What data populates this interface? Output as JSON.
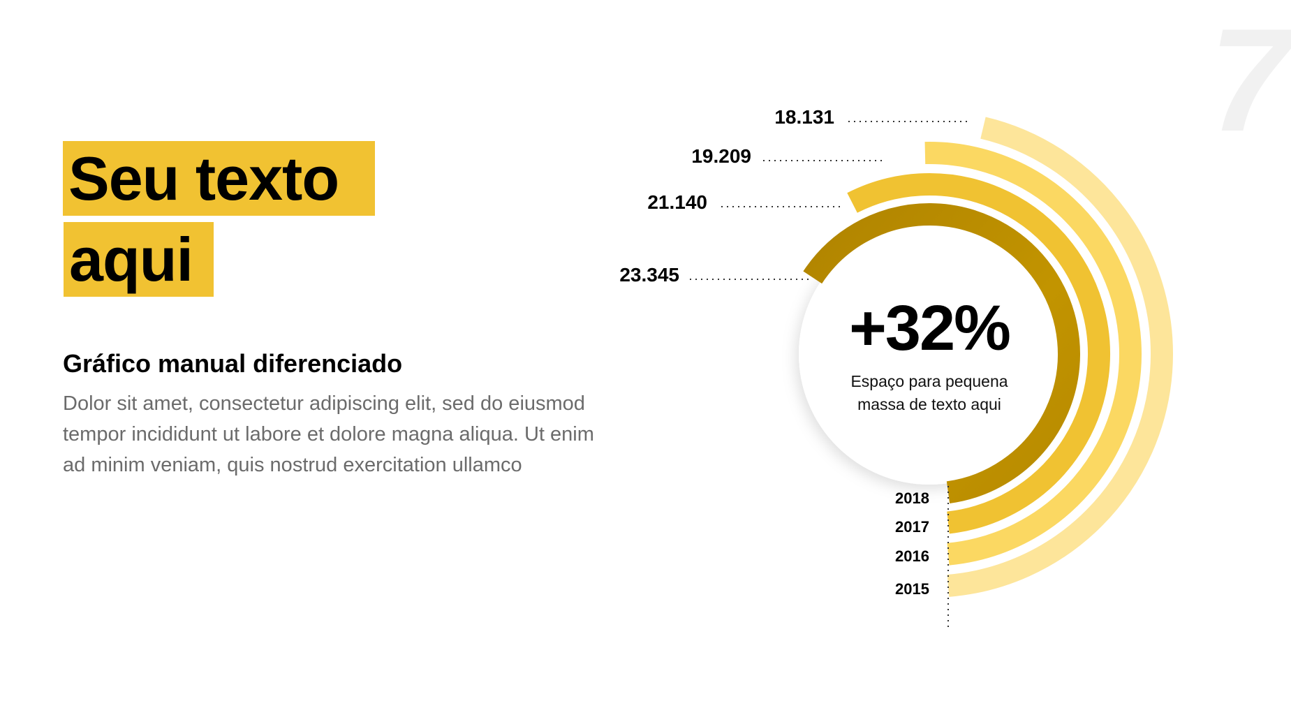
{
  "slide_number": "7",
  "title": {
    "line1": "Seu texto",
    "line2": "aqui"
  },
  "subtitle": "Gráfico manual diferenciado",
  "paragraph": "Dolor sit amet, consectetur adipiscing elit, sed do eiusmod tempor incididunt ut labore et dolore magna aliqua. Ut enim ad minim veniam, quis nostrud exercitation ullamco",
  "center": {
    "value": "+32%",
    "caption_line1": "Espaço para pequena",
    "caption_line2": "massa de texto aqui"
  },
  "colors": {
    "accent": "#F1C232",
    "y2018": "#BA8C00",
    "y2017": "#F0C232",
    "y2016": "#FBD862",
    "y2015": "#FDE59A"
  },
  "chart_data": {
    "type": "radial-bar",
    "title": "Gráfico manual diferenciado",
    "categories": [
      "2018",
      "2017",
      "2016",
      "2015"
    ],
    "values": [
      23345,
      21140,
      19209,
      18131
    ],
    "value_labels": [
      "23.345",
      "21.140",
      "19.209",
      "18.131"
    ],
    "annotation": "+32%"
  }
}
